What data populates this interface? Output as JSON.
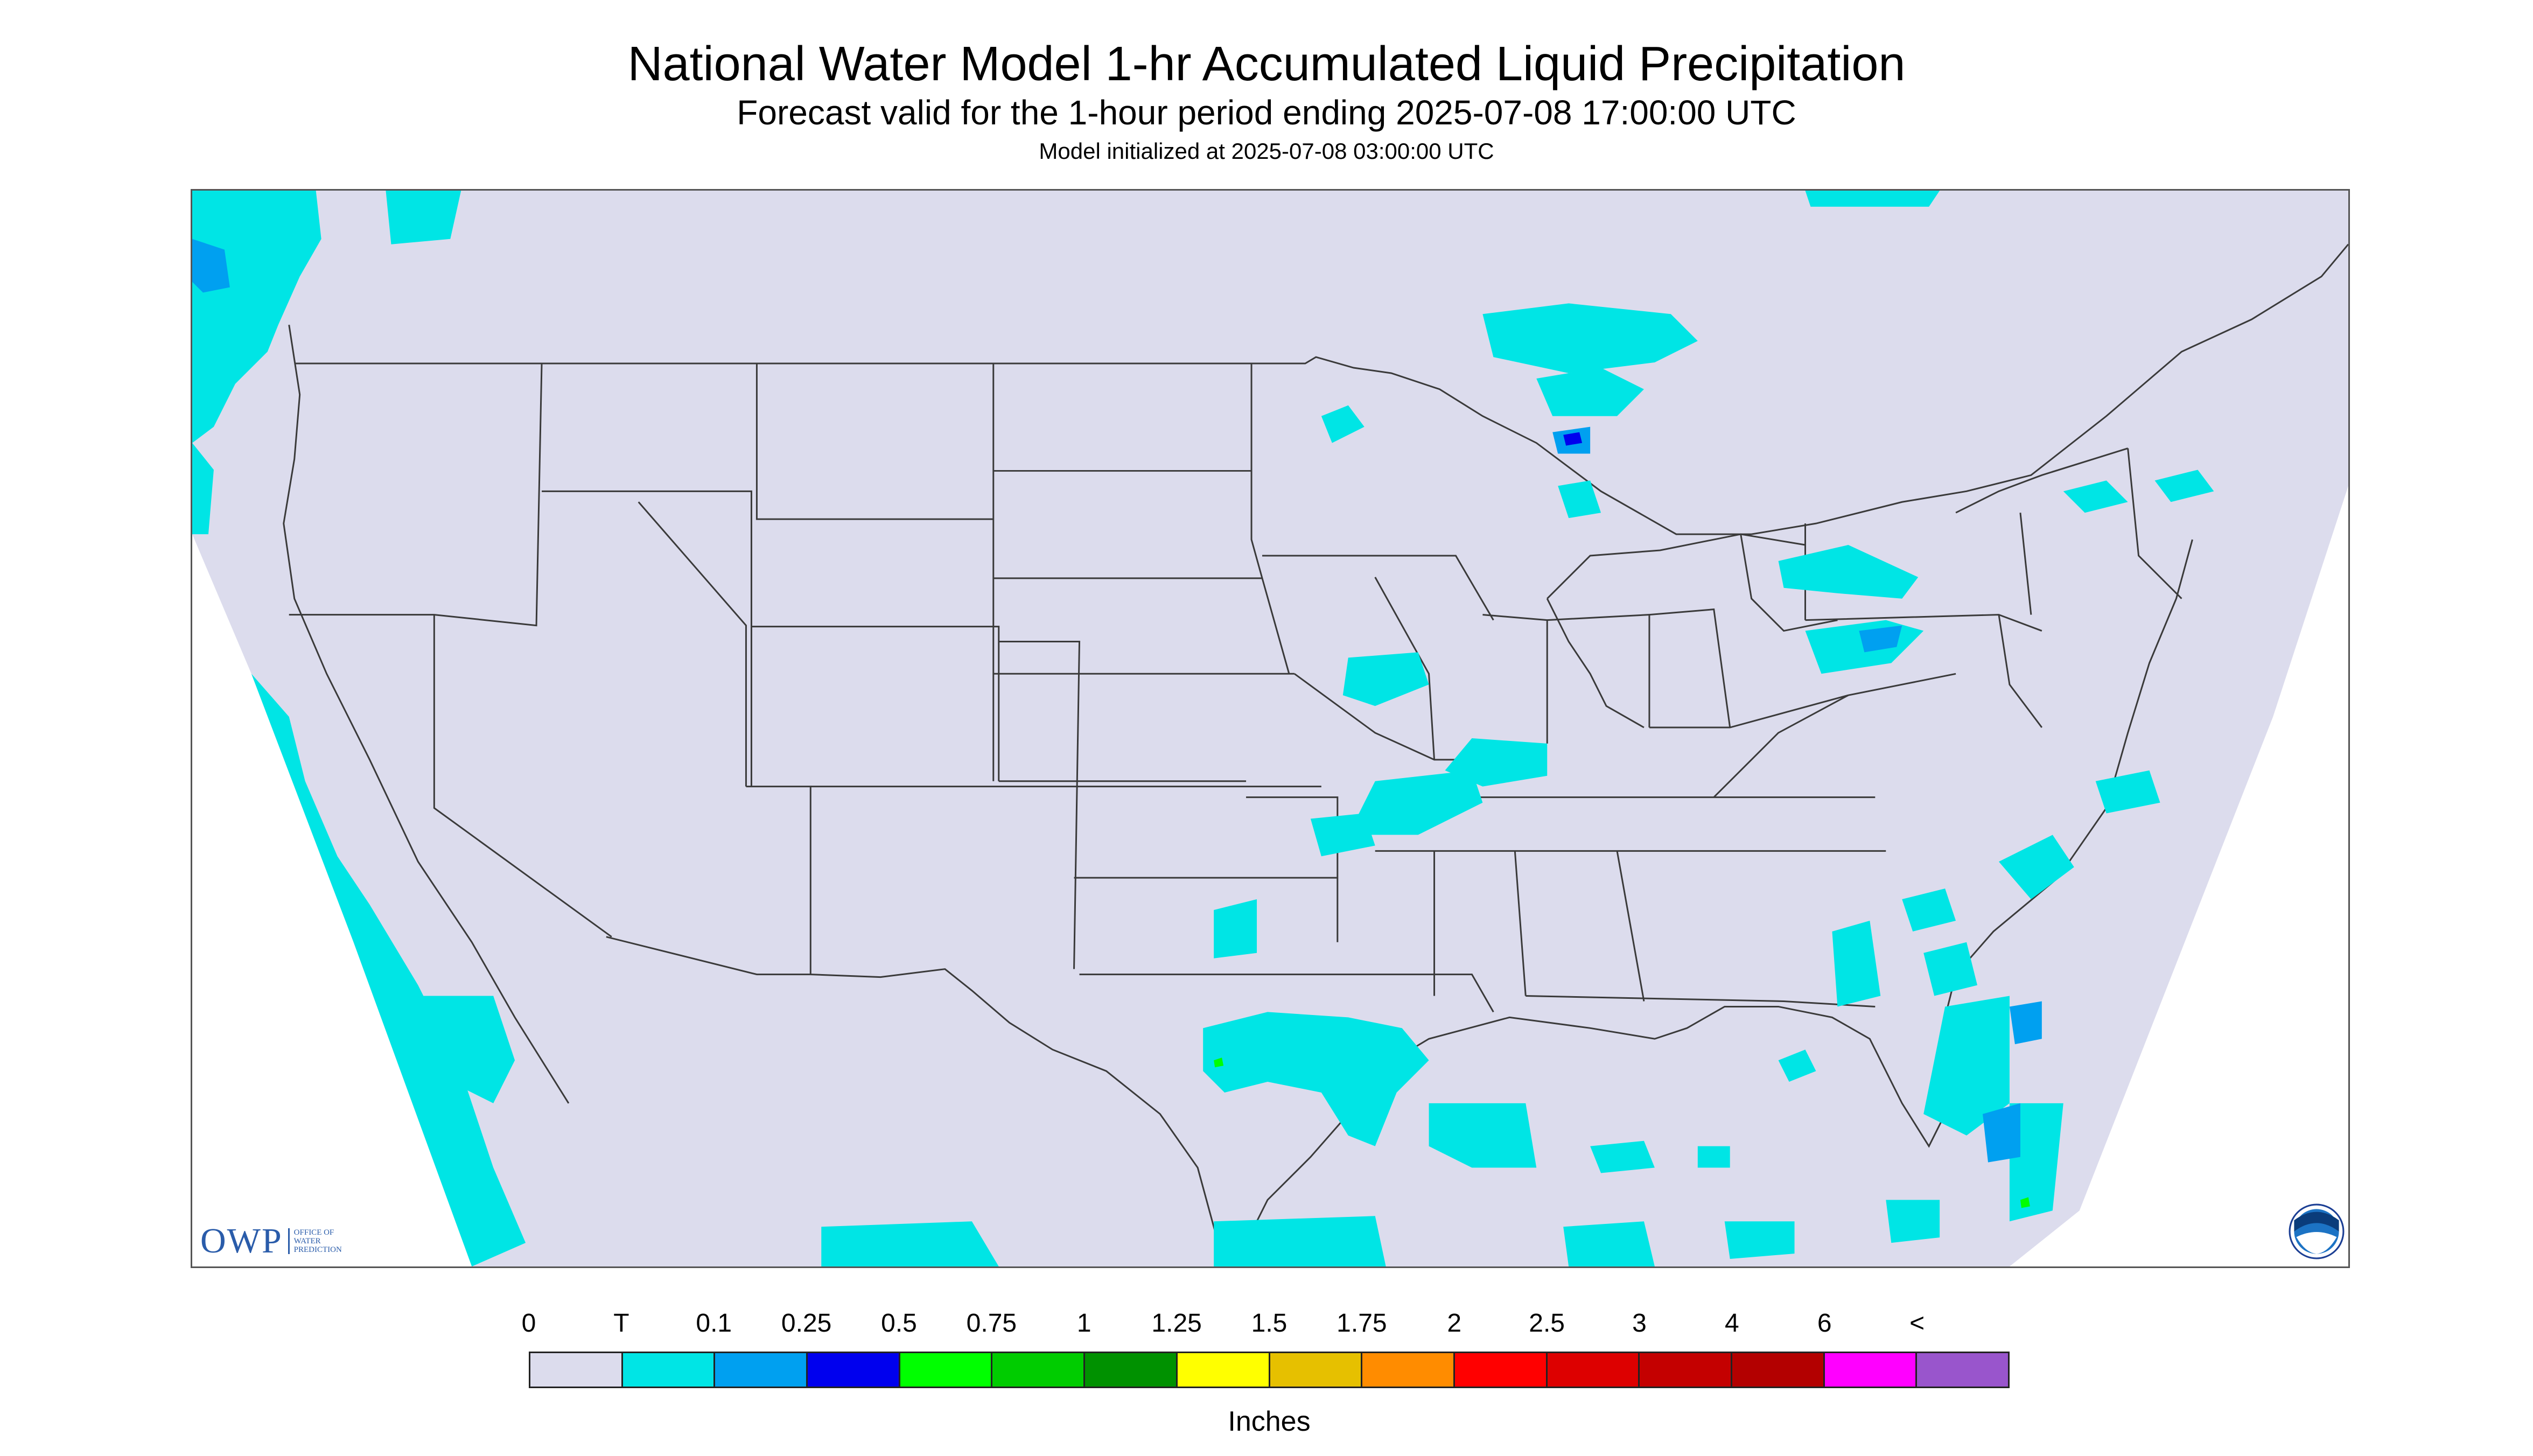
{
  "header": {
    "title": "National Water Model 1-hr Accumulated Liquid Precipitation",
    "subtitle": "Forecast valid for the 1-hour period ending 2025-07-08 17:00:00 UTC",
    "init_line": "Model initialized at 2025-07-08 03:00:00 UTC"
  },
  "map": {
    "region": "CONUS",
    "background_color": "#dcdced",
    "boundary_color": "#3a3a3a",
    "precip_regions_colors": [
      "#00e5e5",
      "#00a0f0",
      "#0000ee",
      "#00ff00"
    ]
  },
  "branding": {
    "owp_logo": "OWP",
    "owp_subtitle": "OFFICE OF WATER PREDICTION",
    "noaa_icon": "noaa-seal-icon"
  },
  "legend": {
    "labels": [
      "0",
      "T",
      "0.1",
      "0.25",
      "0.5",
      "0.75",
      "1",
      "1.25",
      "1.5",
      "1.75",
      "2",
      "2.5",
      "3",
      "4",
      "6",
      "<"
    ],
    "colors": [
      "#dcdced",
      "#00e5e5",
      "#00a0f0",
      "#0000ee",
      "#00ff00",
      "#00cc00",
      "#009100",
      "#ffff00",
      "#e6c000",
      "#ff8c00",
      "#ff0000",
      "#dd0000",
      "#c40000",
      "#b30000",
      "#ff00ff",
      "#9955cc"
    ],
    "units": "Inches"
  }
}
